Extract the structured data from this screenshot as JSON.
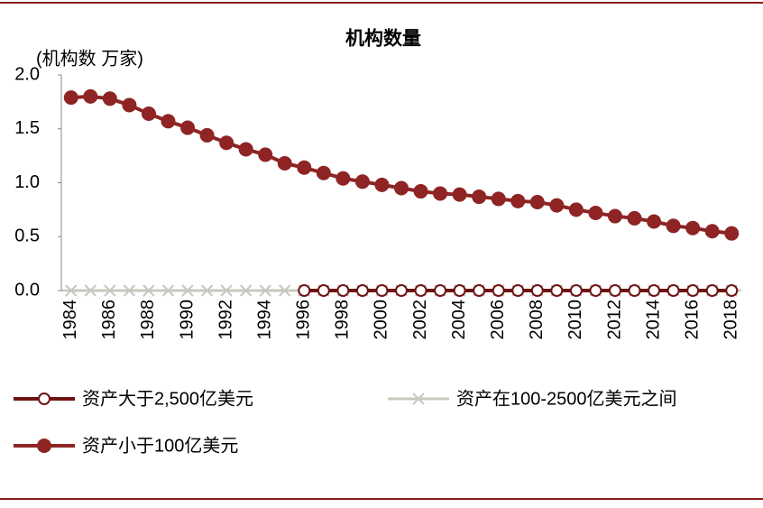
{
  "chart_data": {
    "type": "line",
    "title": "机构数量",
    "y_label": "(机构数 万家)",
    "categories": [
      "1984",
      null,
      "1986",
      null,
      "1988",
      null,
      "1990",
      null,
      "1992",
      null,
      "1994",
      null,
      "1996",
      null,
      "1998",
      null,
      "2000",
      null,
      "2002",
      null,
      "2004",
      null,
      "2006",
      null,
      "2008",
      null,
      "2010",
      null,
      "2012",
      null,
      "2014",
      null,
      "2016",
      null,
      "2018"
    ],
    "ylim": [
      0,
      2.0
    ],
    "yticks": [
      {
        "value": 0,
        "label": "0.0"
      },
      0.5,
      {
        "value": 1.0,
        "label": "1.0"
      },
      1.5,
      {
        "value": 2.0,
        "label": "2.0"
      }
    ],
    "grid": false,
    "series": [
      {
        "name": "资产大于2,500亿美元",
        "color": "#6e1414",
        "marker": "open-circle",
        "values": [
          null,
          null,
          null,
          null,
          null,
          null,
          null,
          null,
          null,
          null,
          null,
          null,
          0,
          0,
          0,
          0,
          0,
          0,
          0,
          0,
          0,
          0,
          0,
          0,
          0,
          0,
          0,
          0,
          0,
          0,
          0,
          0,
          0,
          0,
          0
        ]
      },
      {
        "name": "资产在100-2500亿美元之间",
        "color": "#c8c8be",
        "marker": "x",
        "values": [
          0,
          0,
          0,
          0,
          0,
          0,
          0,
          0,
          0,
          0,
          0,
          0,
          0,
          0,
          0,
          0,
          0,
          0,
          0,
          0,
          0,
          0,
          0,
          0,
          0,
          0,
          0,
          0,
          0,
          0,
          0,
          0,
          0,
          0,
          0
        ]
      },
      {
        "name": "资产小于100亿美元",
        "color": "#8e2424",
        "marker": "filled-circle",
        "values": [
          1.79,
          1.8,
          1.78,
          1.72,
          1.64,
          1.57,
          1.51,
          1.44,
          1.37,
          1.31,
          1.26,
          1.18,
          1.14,
          1.09,
          1.04,
          1.01,
          0.98,
          0.95,
          0.92,
          0.9,
          0.89,
          0.87,
          0.85,
          0.83,
          0.82,
          0.79,
          0.75,
          0.72,
          0.69,
          0.67,
          0.64,
          0.6,
          0.58,
          0.55,
          0.53
        ]
      }
    ]
  }
}
